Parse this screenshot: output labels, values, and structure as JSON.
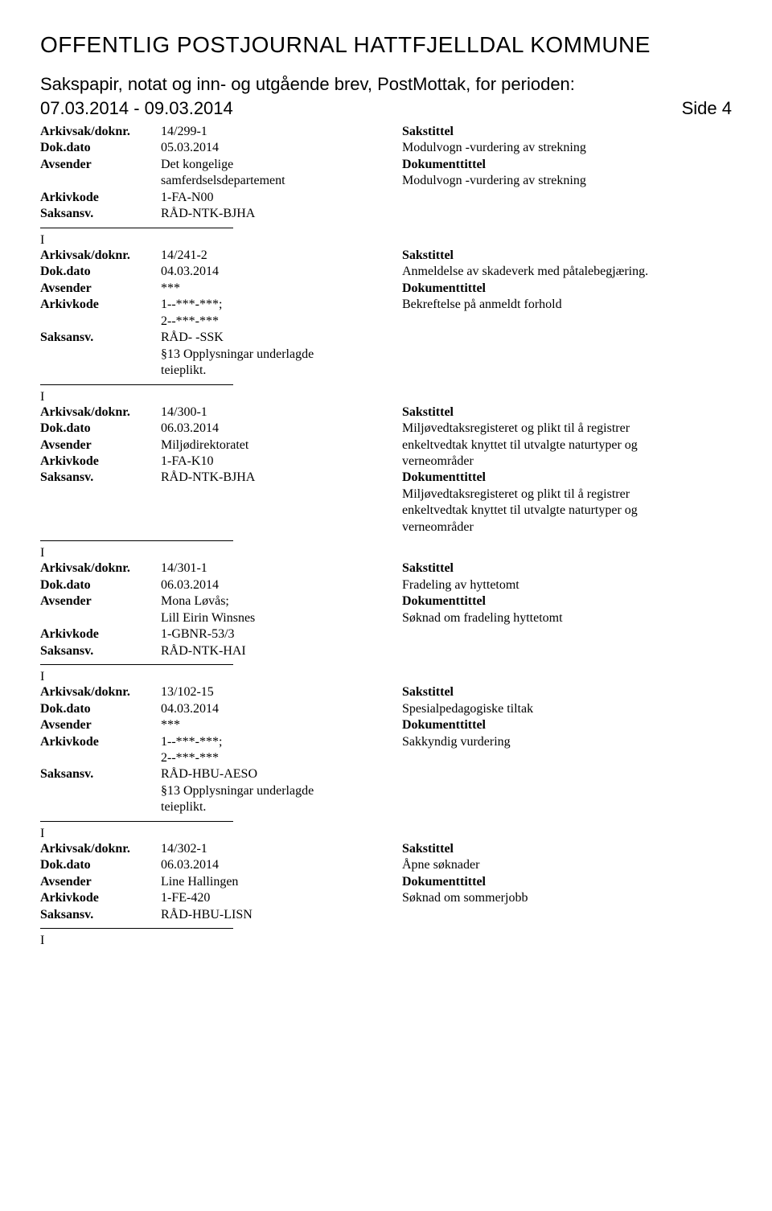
{
  "header": {
    "title": "OFFENTLIG POSTJOURNAL HATTFJELLDAL KOMMUNE",
    "subtitle": "Sakspapir, notat og inn- og utgående brev, PostMottak, for perioden:",
    "date_range": "07.03.2014 - 09.03.2014",
    "side_label": "Side 4"
  },
  "labels": {
    "arkivsak": "Arkivsak/doknr.",
    "dokdato": "Dok.dato",
    "avsender": "Avsender",
    "arkivkode": "Arkivkode",
    "saksansv": "Saksansv.",
    "sakstittel": "Sakstittel",
    "dokumenttittel": "Dokumenttittel",
    "ind": "I"
  },
  "entries": [
    {
      "arkivsak": "14/299-1",
      "dokdato": "05.03.2014",
      "avsender": "Det kongelige samferdselsdepartement",
      "arkivkode": "1-FA-N00",
      "saksansv": "RÅD-NTK-BJHA",
      "sakstittel": "Modulvogn -vurdering av strekning",
      "dokumenttittel": "Modulvogn -vurdering av strekning",
      "avsender_lines": [
        "Det kongelige",
        "samferdselsdepartement"
      ],
      "saksansv_lines": [
        "RÅD-NTK-BJHA"
      ]
    },
    {
      "arkivsak": "14/241-2",
      "dokdato": "04.03.2014",
      "avsender": "***",
      "arkivkode": "1--***-***;",
      "arkivkode2": "2--***-***",
      "saksansv_lines": [
        "RÅD- -SSK",
        "§13 Opplysningar underlagde",
        "teieplikt."
      ],
      "sakstittel": "Anmeldelse av skadeverk med påtalebegjæring.",
      "dokumenttittel": "Bekreftelse på anmeldt forhold",
      "avsender_lines": [
        "***"
      ]
    },
    {
      "arkivsak": "14/300-1",
      "dokdato": "06.03.2014",
      "avsender": "Miljødirektoratet",
      "arkivkode": "1-FA-K10",
      "saksansv_lines": [
        "RÅD-NTK-BJHA"
      ],
      "sakstittel_lines": [
        "Miljøvedtaksregisteret og plikt til å registrer",
        "enkeltvedtak knyttet til utvalgte naturtyper og",
        "verneområder"
      ],
      "dokumenttittel_lines": [
        "Miljøvedtaksregisteret og plikt til å registrer",
        "enkeltvedtak knyttet til utvalgte naturtyper og",
        "verneområder"
      ],
      "avsender_lines": [
        "Miljødirektoratet"
      ]
    },
    {
      "arkivsak": "14/301-1",
      "dokdato": "06.03.2014",
      "avsender_lines": [
        "Mona Løvås;",
        "Lill Eirin Winsnes"
      ],
      "arkivkode": "1-GBNR-53/3",
      "saksansv_lines": [
        "RÅD-NTK-HAI"
      ],
      "sakstittel": "Fradeling av hyttetomt",
      "dokumenttittel": "Søknad om fradeling hyttetomt"
    },
    {
      "arkivsak": "13/102-15",
      "dokdato": "04.03.2014",
      "avsender_lines": [
        "***"
      ],
      "arkivkode": "1--***-***;",
      "arkivkode2": "2--***-***",
      "saksansv_lines": [
        "RÅD-HBU-AESO",
        "§13 Opplysningar underlagde",
        "teieplikt."
      ],
      "sakstittel": "Spesialpedagogiske tiltak",
      "dokumenttittel": "Sakkyndig vurdering"
    },
    {
      "arkivsak": "14/302-1",
      "dokdato": "06.03.2014",
      "avsender_lines": [
        "Line Hallingen"
      ],
      "arkivkode": "1-FE-420",
      "saksansv_lines": [
        "RÅD-HBU-LISN"
      ],
      "sakstittel": "Åpne søknader",
      "dokumenttittel": "Søknad om sommerjobb"
    }
  ]
}
